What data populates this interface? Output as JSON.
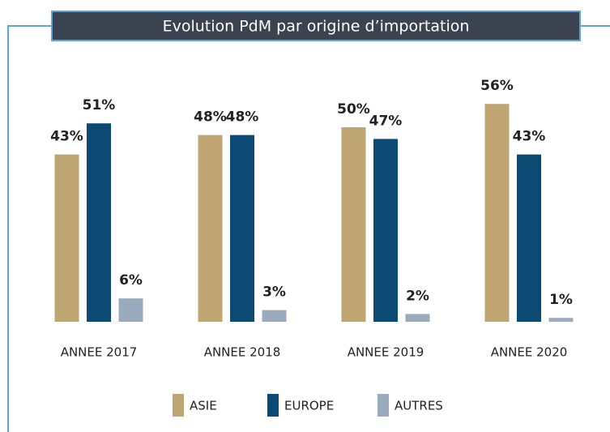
{
  "chart_data": {
    "type": "bar",
    "title": "Evolution PdM par origine d’importation",
    "categories": [
      "ANNEE 2017",
      "ANNEE 2018",
      "ANNEE 2019",
      "ANNEE 2020"
    ],
    "series": [
      {
        "name": "ASIE",
        "color": "#bfa571",
        "values": [
          43,
          48,
          50,
          56
        ],
        "value_labels": [
          "43%",
          "48%",
          "50%",
          "56%"
        ]
      },
      {
        "name": "EUROPE",
        "color": "#0d4a73",
        "values": [
          51,
          48,
          47,
          43
        ],
        "value_labels": [
          "51%",
          "48%",
          "47%",
          "43%"
        ]
      },
      {
        "name": "AUTRES",
        "color": "#9aabbd",
        "values": [
          6,
          3,
          2,
          1
        ],
        "value_labels": [
          "6%",
          "3%",
          "2%",
          "1%"
        ]
      }
    ]
  }
}
